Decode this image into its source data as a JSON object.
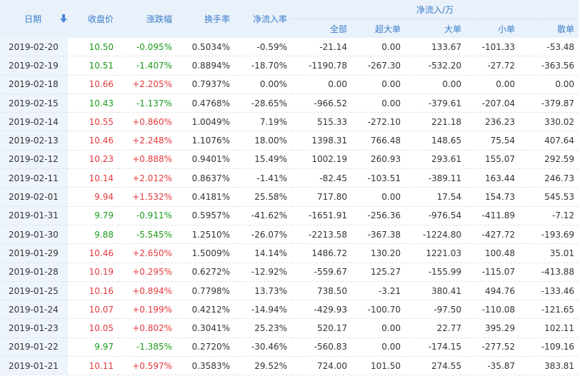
{
  "header": {
    "columns": [
      "日期",
      "收盘价",
      "涨跌幅",
      "换手率",
      "净流入率"
    ],
    "group": "净流入/万",
    "subcolumns": [
      "全部",
      "超大单",
      "大单",
      "小单",
      "散单"
    ]
  },
  "table": {
    "rows": [
      [
        "2019-02-20",
        "10.50",
        "-0.095%",
        "0.5034%",
        "-0.59%",
        "-21.14",
        "0.00",
        "133.67",
        "-101.33",
        "-53.48"
      ],
      [
        "2019-02-19",
        "10.51",
        "-1.407%",
        "0.8894%",
        "-18.70%",
        "-1190.78",
        "-267.30",
        "-532.20",
        "-27.72",
        "-363.56"
      ],
      [
        "2019-02-18",
        "10.66",
        "+2.205%",
        "0.7937%",
        "0.00%",
        "0.00",
        "0.00",
        "0.00",
        "0.00",
        "0.00"
      ],
      [
        "2019-02-15",
        "10.43",
        "-1.137%",
        "0.4768%",
        "-28.65%",
        "-966.52",
        "0.00",
        "-379.61",
        "-207.04",
        "-379.87"
      ],
      [
        "2019-02-14",
        "10.55",
        "+0.860%",
        "1.0049%",
        "7.19%",
        "515.33",
        "-272.10",
        "221.18",
        "236.23",
        "330.02"
      ],
      [
        "2019-02-13",
        "10.46",
        "+2.248%",
        "1.1076%",
        "18.00%",
        "1398.31",
        "766.48",
        "148.65",
        "75.54",
        "407.64"
      ],
      [
        "2019-02-12",
        "10.23",
        "+0.888%",
        "0.9401%",
        "15.49%",
        "1002.19",
        "260.93",
        "293.61",
        "155.07",
        "292.59"
      ],
      [
        "2019-02-11",
        "10.14",
        "+2.012%",
        "0.8637%",
        "-1.41%",
        "-82.45",
        "-103.51",
        "-389.11",
        "163.44",
        "246.73"
      ],
      [
        "2019-02-01",
        "9.94",
        "+1.532%",
        "0.4181%",
        "25.58%",
        "717.80",
        "0.00",
        "17.54",
        "154.73",
        "545.53"
      ],
      [
        "2019-01-31",
        "9.79",
        "-0.911%",
        "0.5957%",
        "-41.62%",
        "-1651.91",
        "-256.36",
        "-976.54",
        "-411.89",
        "-7.12"
      ],
      [
        "2019-01-30",
        "9.88",
        "-5.545%",
        "1.2510%",
        "-26.07%",
        "-2213.58",
        "-367.38",
        "-1224.80",
        "-427.72",
        "-193.69"
      ],
      [
        "2019-01-29",
        "10.46",
        "+2.650%",
        "1.5009%",
        "14.14%",
        "1486.72",
        "130.20",
        "1221.03",
        "100.48",
        "35.01"
      ],
      [
        "2019-01-28",
        "10.19",
        "+0.295%",
        "0.6272%",
        "-12.92%",
        "-559.67",
        "125.27",
        "-155.99",
        "-115.07",
        "-413.88"
      ],
      [
        "2019-01-25",
        "10.16",
        "+0.894%",
        "0.7798%",
        "13.73%",
        "738.50",
        "-3.21",
        "380.41",
        "494.76",
        "-133.46"
      ],
      [
        "2019-01-24",
        "10.07",
        "+0.199%",
        "0.4212%",
        "-14.94%",
        "-429.93",
        "-100.70",
        "-97.50",
        "-110.08",
        "-121.65"
      ],
      [
        "2019-01-23",
        "10.05",
        "+0.802%",
        "0.3041%",
        "25.23%",
        "520.17",
        "0.00",
        "22.77",
        "395.29",
        "102.11"
      ],
      [
        "2019-01-22",
        "9.97",
        "-1.385%",
        "0.2720%",
        "-30.46%",
        "-560.83",
        "0.00",
        "-174.15",
        "-277.52",
        "-109.16"
      ],
      [
        "2019-01-21",
        "10.11",
        "+0.597%",
        "0.3583%",
        "29.52%",
        "724.00",
        "101.50",
        "274.55",
        "-35.87",
        "383.81"
      ]
    ]
  }
}
